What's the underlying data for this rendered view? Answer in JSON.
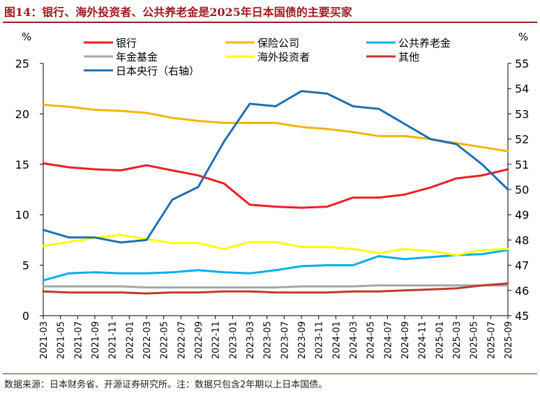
{
  "figure": {
    "title": "图14：银行、海外投资者、公共养老金是2025年日本国债的主要买家",
    "source": "数据来源：日本财务省、开源证券研究所。注：数据只包含2年期以上日本国债。"
  },
  "colors": {
    "title": "#9b1a1f",
    "rule": "#9b1a1f"
  },
  "chart_data": {
    "type": "line",
    "y_left": {
      "unit": "%",
      "ylim": [
        0,
        25
      ],
      "ticks": [
        0,
        5,
        10,
        15,
        20,
        25
      ]
    },
    "y_right": {
      "unit": "%",
      "ylim": [
        45,
        55
      ],
      "ticks": [
        45,
        46,
        47,
        48,
        49,
        50,
        51,
        52,
        53,
        54,
        55
      ]
    },
    "x_ticks": [
      "2021-03",
      "2021-05",
      "2021-07",
      "2021-09",
      "2021-11",
      "2022-01",
      "2022-03",
      "2022-05",
      "2022-07",
      "2022-09",
      "2022-11",
      "2023-01",
      "2023-03",
      "2023-05",
      "2023-07",
      "2023-09",
      "2023-11",
      "2024-01",
      "2024-03",
      "2024-05",
      "2024-07",
      "2024-09",
      "2024-11",
      "2025-01",
      "2025-03",
      "2025-05",
      "2025-07",
      "2025-09"
    ],
    "x": [
      "2021-03",
      "2021-06",
      "2021-09",
      "2021-12",
      "2022-03",
      "2022-06",
      "2022-09",
      "2022-12",
      "2023-03",
      "2023-06",
      "2023-09",
      "2023-12",
      "2024-03",
      "2024-06",
      "2024-09",
      "2024-12",
      "2025-03",
      "2025-06",
      "2025-09"
    ],
    "grid": false,
    "legend": "top",
    "series": [
      {
        "name": "银行",
        "axis": "left",
        "color": "#ee1c25",
        "values": [
          15.1,
          14.7,
          14.5,
          14.4,
          14.9,
          14.4,
          13.9,
          13.1,
          11.0,
          10.8,
          10.7,
          10.8,
          11.7,
          11.7,
          12.0,
          12.7,
          13.6,
          13.9,
          14.5
        ]
      },
      {
        "name": "保险公司",
        "axis": "left",
        "color": "#f5b400",
        "values": [
          20.9,
          20.7,
          20.4,
          20.3,
          20.1,
          19.6,
          19.3,
          19.1,
          19.1,
          19.1,
          18.7,
          18.5,
          18.2,
          17.8,
          17.8,
          17.5,
          17.1,
          16.7,
          16.3
        ]
      },
      {
        "name": "公共养老金",
        "axis": "left",
        "color": "#00aeef",
        "values": [
          3.5,
          4.2,
          4.3,
          4.2,
          4.2,
          4.3,
          4.5,
          4.3,
          4.2,
          4.5,
          4.9,
          5.0,
          5.0,
          5.9,
          5.6,
          5.8,
          6.0,
          6.1,
          6.5
        ]
      },
      {
        "name": "年金基金",
        "axis": "left",
        "color": "#a6a6a6",
        "values": [
          2.9,
          2.9,
          2.9,
          2.9,
          2.8,
          2.8,
          2.8,
          2.8,
          2.8,
          2.8,
          2.9,
          2.9,
          2.9,
          3.0,
          3.0,
          3.0,
          3.0,
          3.0,
          3.0
        ]
      },
      {
        "name": "海外投资者",
        "axis": "left",
        "color": "#ffff00",
        "values": [
          6.9,
          7.3,
          7.7,
          8.0,
          7.6,
          7.2,
          7.2,
          6.6,
          7.3,
          7.3,
          6.8,
          6.8,
          6.6,
          6.2,
          6.6,
          6.4,
          6.0,
          6.5,
          6.6
        ]
      },
      {
        "name": "其他",
        "axis": "left",
        "color": "#c0392b",
        "values": [
          2.4,
          2.3,
          2.3,
          2.3,
          2.2,
          2.3,
          2.3,
          2.4,
          2.4,
          2.3,
          2.3,
          2.3,
          2.4,
          2.4,
          2.5,
          2.6,
          2.7,
          3.0,
          3.2
        ]
      },
      {
        "name": "日本央行（右轴）",
        "axis": "right",
        "color": "#1f6fb2",
        "values": [
          48.4,
          48.1,
          48.1,
          47.9,
          48.0,
          49.6,
          50.1,
          51.9,
          53.4,
          53.3,
          53.9,
          53.8,
          53.3,
          53.2,
          52.6,
          52.0,
          51.8,
          51.0,
          50.0
        ]
      }
    ]
  }
}
